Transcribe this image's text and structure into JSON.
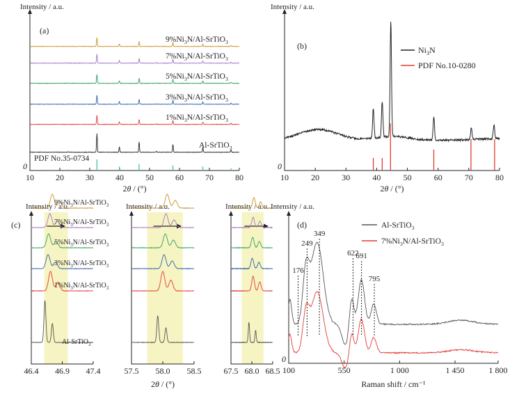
{
  "figure": {
    "panels": [
      {
        "id": "a",
        "label": "(a)",
        "ylabel": "Intensity / a.u.",
        "xlabel": "2θ / (°)",
        "y_origin_label": "0",
        "xticks": [
          10,
          20,
          30,
          40,
          50,
          60,
          70,
          80
        ],
        "xlim": [
          10,
          80
        ]
      },
      {
        "id": "b",
        "label": "(b)",
        "ylabel": "Intensity / a.u.",
        "xlabel": "2θ / (°)",
        "y_origin_label": "0",
        "xticks": [
          10,
          20,
          30,
          40,
          50,
          60,
          70,
          80
        ],
        "xlim": [
          10,
          80
        ]
      },
      {
        "id": "c1",
        "label": "(c)",
        "ylabel": "Intensity / a.u.",
        "xticks": [
          "46.4",
          "46.9",
          "47.4"
        ],
        "xlim": [
          46.4,
          47.4
        ],
        "highlight": [
          46.61,
          46.99
        ]
      },
      {
        "id": "c2",
        "ylabel": "Intensity / a.u.",
        "xlabel": "2θ / (°)",
        "xticks": [
          "57.5",
          "58.0",
          "58.5"
        ],
        "xlim": [
          57.5,
          58.5
        ],
        "highlight": [
          57.75,
          58.32
        ]
      },
      {
        "id": "c3",
        "ylabel": "Intensity / a.u.",
        "xticks": [
          "67.5",
          "68.0",
          "68.5"
        ],
        "xlim": [
          67.5,
          68.5
        ],
        "highlight": [
          67.76,
          68.28
        ]
      },
      {
        "id": "d",
        "label": "(d)",
        "ylabel": "Intensity / a.u.",
        "xlabel": "Raman shift / cm⁻¹",
        "y_origin_label": "0",
        "xticks": [
          "100",
          "550",
          "1 000",
          "1 450",
          "1 800"
        ],
        "xlim": [
          100,
          1800
        ]
      }
    ],
    "colors": {
      "orange": "#c8932a",
      "purple": "#a173c7",
      "green": "#2ea05d",
      "blue": "#2e5fae",
      "red": "#e23a35",
      "black": "#222222",
      "gray": "#555555",
      "highlight": "#f6f4c2",
      "ref": "#3ec4b1"
    }
  },
  "chart_data": [
    {
      "panel": "a",
      "type": "line",
      "series": [
        {
          "name": "9%Ni3N/Al-SrTiO3",
          "base": "9%Ni",
          "sub1": "3",
          "mid": "N/Al-SrTiO",
          "sub2": "3",
          "color": "orange",
          "offset": 6
        },
        {
          "name": "7%Ni3N/Al-SrTiO3",
          "base": "7%Ni",
          "sub1": "3",
          "mid": "N/Al-SrTiO",
          "sub2": "3",
          "color": "purple",
          "offset": 5
        },
        {
          "name": "5%Ni3N/Al-SrTiO3",
          "base": "5%Ni",
          "sub1": "3",
          "mid": "N/Al-SrTiO",
          "sub2": "3",
          "color": "green",
          "offset": 4
        },
        {
          "name": "3%Ni3N/Al-SrTiO3",
          "base": "3%Ni",
          "sub1": "3",
          "mid": "N/Al-SrTiO",
          "sub2": "3",
          "color": "blue",
          "offset": 3
        },
        {
          "name": "1%Ni3N/Al-SrTiO3",
          "base": "1%Ni",
          "sub1": "3",
          "mid": "N/Al-SrTiO",
          "sub2": "3",
          "color": "red",
          "offset": 2
        },
        {
          "name": "Al-SrTiO3",
          "base": "Al-SrTiO",
          "sub1": "3",
          "mid": "",
          "sub2": "",
          "color": "black",
          "offset": 1
        }
      ],
      "peaks": [
        {
          "x": 22.8,
          "h": 0.03
        },
        {
          "x": 32.4,
          "h": 1.0
        },
        {
          "x": 39.9,
          "h": 0.28
        },
        {
          "x": 46.5,
          "h": 0.55
        },
        {
          "x": 52.3,
          "h": 0.05
        },
        {
          "x": 57.8,
          "h": 0.42
        },
        {
          "x": 67.8,
          "h": 0.25
        },
        {
          "x": 77.2,
          "h": 0.12
        }
      ],
      "reference": {
        "name": "PDF No.35-0734",
        "color": "ref",
        "lines": [
          {
            "x": 22.8,
            "h": 0.1
          },
          {
            "x": 32.4,
            "h": 1.0
          },
          {
            "x": 39.9,
            "h": 0.35
          },
          {
            "x": 46.5,
            "h": 0.6
          },
          {
            "x": 52.3,
            "h": 0.08
          },
          {
            "x": 57.8,
            "h": 0.45
          },
          {
            "x": 67.8,
            "h": 0.35
          },
          {
            "x": 72.5,
            "h": 0.08
          },
          {
            "x": 77.2,
            "h": 0.2
          }
        ]
      }
    },
    {
      "panel": "b",
      "type": "line",
      "series": [
        {
          "name": "Ni3N",
          "base": "Ni",
          "sub1": "3",
          "mid": "N",
          "color": "black"
        }
      ],
      "peaks": [
        {
          "x": 38.9,
          "h": 0.25
        },
        {
          "x": 41.8,
          "h": 0.3
        },
        {
          "x": 44.6,
          "h": 0.98
        },
        {
          "x": 58.6,
          "h": 0.2
        },
        {
          "x": 70.8,
          "h": 0.1
        },
        {
          "x": 78.2,
          "h": 0.12
        }
      ],
      "reference": {
        "name": "PDF No.10-0280",
        "color": "red",
        "lines": [
          {
            "x": 38.9,
            "h": 0.12
          },
          {
            "x": 41.8,
            "h": 0.12
          },
          {
            "x": 44.5,
            "h": 0.45
          },
          {
            "x": 58.6,
            "h": 0.2
          },
          {
            "x": 70.7,
            "h": 0.3
          },
          {
            "x": 78.4,
            "h": 0.3
          }
        ]
      }
    },
    {
      "panel": "c",
      "type": "line",
      "series": [
        {
          "name": "9%Ni3N/Al-SrTiO3",
          "base": "9%Ni",
          "sub1": "3",
          "mid": "N/Al-SrTiO",
          "sub2": "3",
          "color": "orange"
        },
        {
          "name": "7%Ni3N/Al-SrTiO3",
          "base": "7%Ni",
          "sub1": "3",
          "mid": "N/Al-SrTiO",
          "sub2": "3",
          "color": "purple"
        },
        {
          "name": "5%Ni3N/Al-SrTiO3",
          "base": "5%Ni",
          "sub1": "3",
          "mid": "N/Al-SrTiO",
          "sub2": "3",
          "color": "green"
        },
        {
          "name": "3%Ni3N/Al-SrTiO3",
          "base": "3%Ni",
          "sub1": "3",
          "mid": "N/Al-SrTiO",
          "sub2": "3",
          "color": "blue"
        },
        {
          "name": "1%Ni3N/Al-SrTiO3",
          "base": "1%Ni",
          "sub1": "3",
          "mid": "N/Al-SrTiO",
          "sub2": "3",
          "color": "red"
        },
        {
          "name": "Al-SrTiO3",
          "base": "Al-SrTiO",
          "sub1": "3",
          "mid": "",
          "sub2": "",
          "color": "gray"
        }
      ],
      "subpanels": [
        {
          "peaks": [
            46.62,
            46.74
          ],
          "heights": [
            1.0,
            0.45
          ],
          "shift": [
            0.12,
            0.08,
            0.06,
            0.05,
            0.09,
            0
          ],
          "arrow": [
            46.65,
            46.95
          ]
        },
        {
          "peaks": [
            58.0,
            58.13
          ],
          "heights": [
            1.0,
            0.55
          ],
          "shift": [
            0.07,
            0.05,
            0.04,
            0.02,
            0.0,
            -0.08
          ],
          "arrow": [
            57.85,
            58.3
          ]
        },
        {
          "peaks": [
            67.97,
            68.13
          ],
          "heights": [
            0.75,
            0.45
          ],
          "shift": [
            0.08,
            0.06,
            0.05,
            0.04,
            0.06,
            -0.04
          ],
          "arrow": [
            67.82,
            68.4
          ]
        }
      ]
    },
    {
      "panel": "d",
      "type": "line",
      "series": [
        {
          "name": "Al-SrTiO3",
          "base": "Al-SrTiO",
          "sub1": "3",
          "mid": "",
          "sub2": "",
          "color": "gray"
        },
        {
          "name": "7%Ni3N/Al-SrTiO3",
          "base": "7%Ni",
          "sub1": "3",
          "mid": "N/Al-SrTiO",
          "sub2": "3",
          "color": "red"
        }
      ],
      "annotations": [
        {
          "x": 176,
          "label": "176"
        },
        {
          "x": 249,
          "label": "249"
        },
        {
          "x": 349,
          "label": "349"
        },
        {
          "x": 622,
          "label": "622"
        },
        {
          "x": 691,
          "label": "691"
        },
        {
          "x": 795,
          "label": "795"
        }
      ]
    }
  ]
}
